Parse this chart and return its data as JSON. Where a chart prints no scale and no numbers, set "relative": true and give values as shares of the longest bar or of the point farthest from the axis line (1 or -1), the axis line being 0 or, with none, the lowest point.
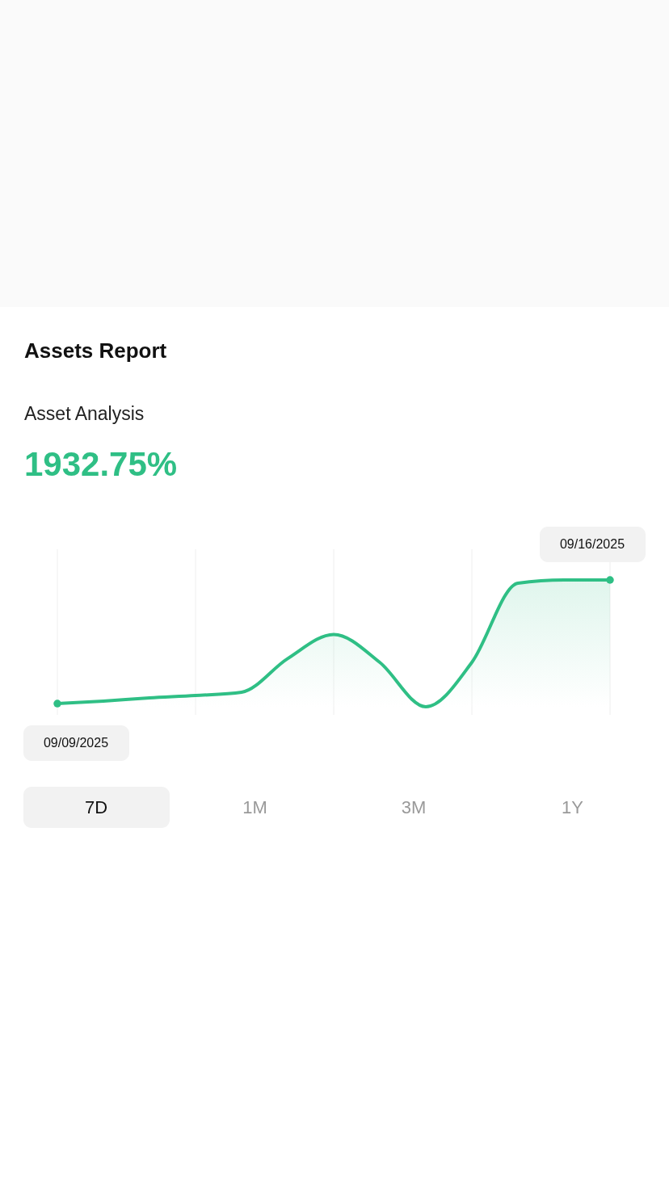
{
  "chart_data": {
    "type": "area",
    "title": "Assets Report",
    "subtitle": "Asset Analysis",
    "categories": [
      null,
      null,
      null,
      null,
      null,
      null,
      null,
      null,
      null,
      null,
      null,
      null,
      null
    ],
    "series": [
      {
        "color": "#2fbf85",
        "values": [
          0.025,
          0.045,
          0.07,
          0.089,
          0.115,
          0.38,
          0.57,
          0.35,
          0,
          0.35,
          0.975,
          1,
          1
        ]
      }
    ],
    "relative": true,
    "grid": "x",
    "marker": "none",
    "legend": false,
    "annotations": [
      "1932.75%",
      "09/09/2025",
      "09/16/2025",
      "7D",
      "1M",
      "3M",
      "1Y"
    ]
  }
}
